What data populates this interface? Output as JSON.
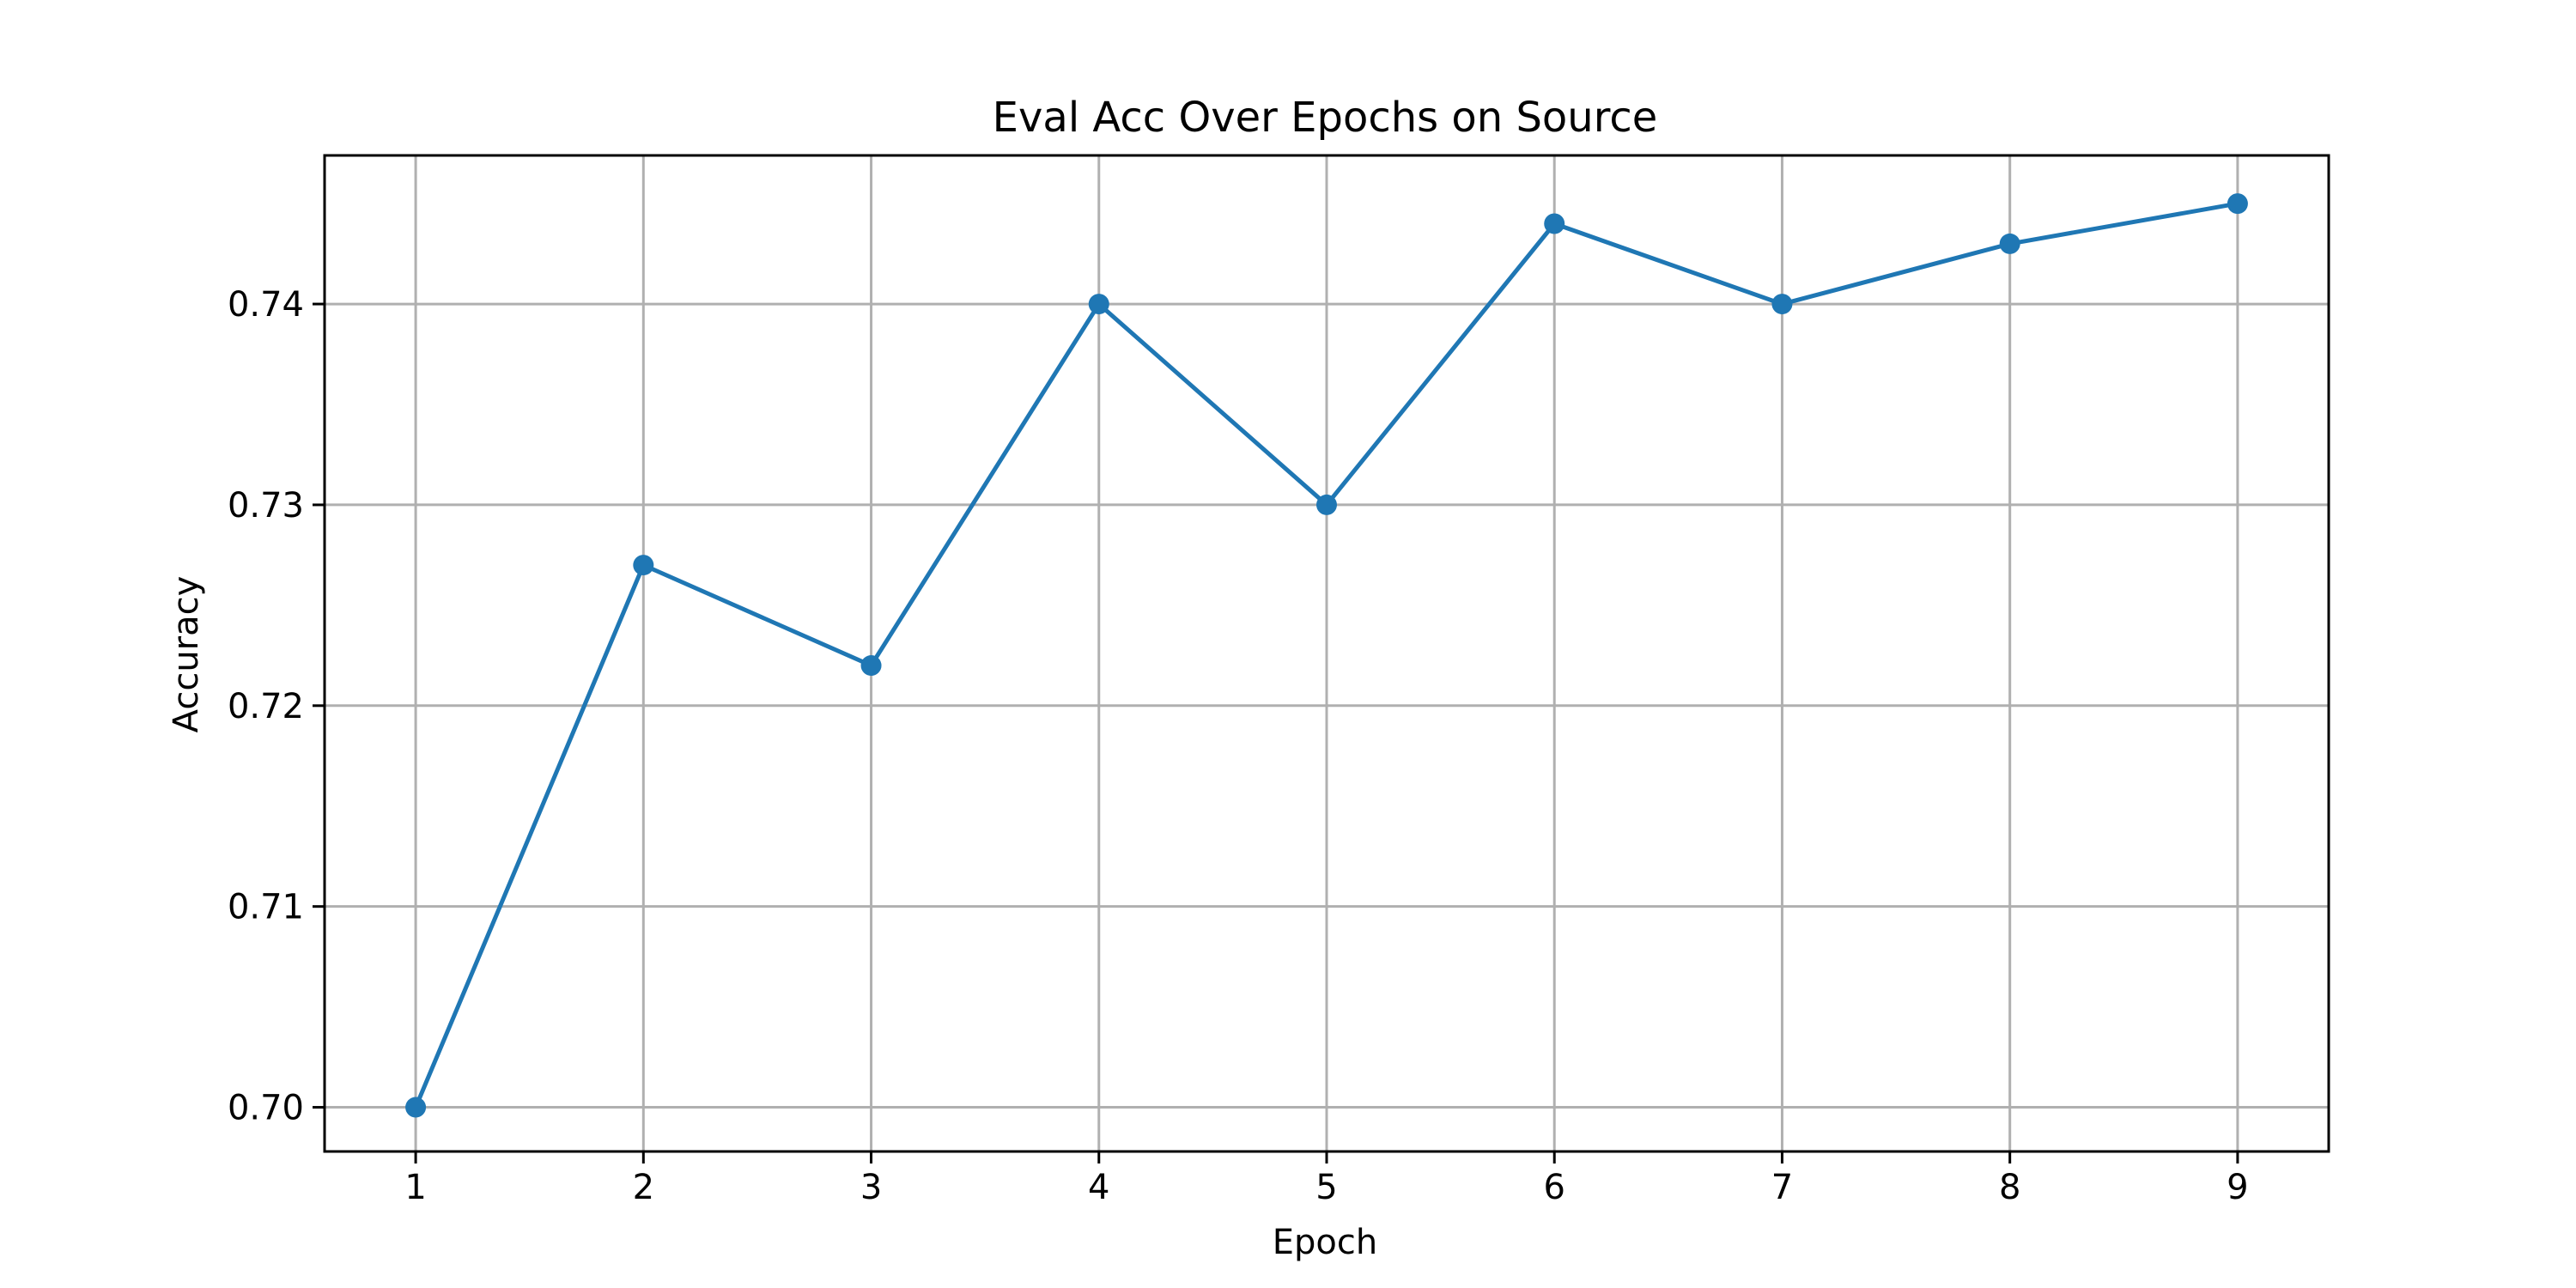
{
  "chart_data": {
    "type": "line",
    "title": "Eval Acc Over Epochs on Source",
    "xlabel": "Epoch",
    "ylabel": "Accuracy",
    "x": [
      1,
      2,
      3,
      4,
      5,
      6,
      7,
      8,
      9
    ],
    "series": [
      {
        "values": [
          0.7,
          0.727,
          0.722,
          0.74,
          0.73,
          0.744,
          0.74,
          0.743,
          0.745
        ]
      }
    ],
    "xlim": [
      0.6,
      9.4
    ],
    "ylim": [
      0.6978,
      0.7474
    ],
    "xticks": [
      1,
      2,
      3,
      4,
      5,
      6,
      7,
      8,
      9
    ],
    "yticks": [
      0.7,
      0.71,
      0.72,
      0.73,
      0.74
    ],
    "ytick_labels": [
      "0.70",
      "0.71",
      "0.72",
      "0.73",
      "0.74"
    ],
    "grid": true,
    "markers": true,
    "line_color": "#1f77b4",
    "grid_color": "#b0b0b0",
    "axis_color": "#000000"
  }
}
